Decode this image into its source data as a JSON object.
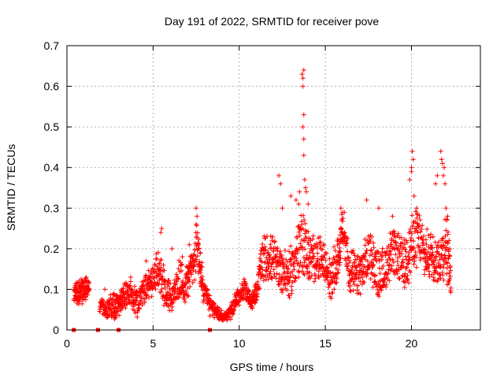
{
  "chart_data": {
    "type": "scatter",
    "title": "Day 191 of 2022, SRMTID for receiver pove",
    "xlabel": "GPS time / hours",
    "ylabel": "SRMTID / TECUs",
    "xlim": [
      0,
      24
    ],
    "ylim": [
      0,
      0.7
    ],
    "xticks": [
      0,
      5,
      10,
      15,
      20
    ],
    "yticks": [
      0,
      0.1,
      0.2,
      0.3,
      0.4,
      0.5,
      0.6,
      0.7
    ],
    "grid": true,
    "marker": "plus",
    "color": "#ff0000",
    "gap_markers_x": [
      0.4,
      1.8,
      3.0,
      8.3
    ],
    "envelope": [
      [
        0.4,
        0.085,
        0.025
      ],
      [
        0.7,
        0.09,
        0.025
      ],
      [
        1.0,
        0.1,
        0.03
      ],
      [
        1.3,
        0.105,
        0.02
      ],
      [
        1.9,
        0.06,
        0.02
      ],
      [
        2.3,
        0.05,
        0.02
      ],
      [
        2.7,
        0.06,
        0.03
      ],
      [
        3.0,
        0.06,
        0.02
      ],
      [
        3.3,
        0.09,
        0.03
      ],
      [
        3.7,
        0.08,
        0.03
      ],
      [
        4.1,
        0.07,
        0.03
      ],
      [
        4.5,
        0.1,
        0.03
      ],
      [
        4.9,
        0.12,
        0.03
      ],
      [
        5.3,
        0.15,
        0.04
      ],
      [
        5.7,
        0.1,
        0.04
      ],
      [
        6.1,
        0.08,
        0.03
      ],
      [
        6.5,
        0.12,
        0.04
      ],
      [
        6.9,
        0.11,
        0.04
      ],
      [
        7.2,
        0.15,
        0.04
      ],
      [
        7.6,
        0.2,
        0.06
      ],
      [
        7.9,
        0.1,
        0.03
      ],
      [
        8.3,
        0.06,
        0.02
      ],
      [
        8.7,
        0.045,
        0.015
      ],
      [
        9.1,
        0.03,
        0.01
      ],
      [
        9.5,
        0.045,
        0.015
      ],
      [
        9.9,
        0.08,
        0.02
      ],
      [
        10.3,
        0.1,
        0.02
      ],
      [
        10.7,
        0.07,
        0.015
      ],
      [
        11.0,
        0.09,
        0.02
      ],
      [
        11.3,
        0.17,
        0.05
      ],
      [
        11.7,
        0.18,
        0.05
      ],
      [
        12.1,
        0.16,
        0.05
      ],
      [
        12.5,
        0.15,
        0.05
      ],
      [
        12.9,
        0.13,
        0.05
      ],
      [
        13.3,
        0.18,
        0.06
      ],
      [
        13.7,
        0.22,
        0.07
      ],
      [
        14.1,
        0.17,
        0.05
      ],
      [
        14.5,
        0.18,
        0.05
      ],
      [
        14.9,
        0.17,
        0.04
      ],
      [
        15.3,
        0.12,
        0.04
      ],
      [
        15.7,
        0.17,
        0.05
      ],
      [
        16.0,
        0.25,
        0.04
      ],
      [
        16.4,
        0.15,
        0.05
      ],
      [
        16.8,
        0.13,
        0.04
      ],
      [
        17.2,
        0.15,
        0.05
      ],
      [
        17.6,
        0.19,
        0.05
      ],
      [
        18.0,
        0.14,
        0.05
      ],
      [
        18.4,
        0.14,
        0.05
      ],
      [
        18.8,
        0.19,
        0.05
      ],
      [
        19.2,
        0.18,
        0.05
      ],
      [
        19.6,
        0.16,
        0.05
      ],
      [
        20.0,
        0.21,
        0.06
      ],
      [
        20.4,
        0.23,
        0.06
      ],
      [
        20.8,
        0.18,
        0.05
      ],
      [
        21.2,
        0.19,
        0.05
      ],
      [
        21.6,
        0.17,
        0.05
      ],
      [
        22.0,
        0.21,
        0.07
      ],
      [
        22.3,
        0.13,
        0.04
      ]
    ],
    "spikes": [
      [
        2.2,
        0.1
      ],
      [
        3.7,
        0.13
      ],
      [
        4.6,
        0.17
      ],
      [
        5.5,
        0.25
      ],
      [
        5.45,
        0.24
      ],
      [
        6.1,
        0.2
      ],
      [
        6.7,
        0.18
      ],
      [
        7.1,
        0.21
      ],
      [
        7.5,
        0.3
      ],
      [
        7.55,
        0.28
      ],
      [
        7.5,
        0.26
      ],
      [
        12.3,
        0.38
      ],
      [
        12.4,
        0.36
      ],
      [
        12.5,
        0.3
      ],
      [
        13.0,
        0.33
      ],
      [
        13.3,
        0.32
      ],
      [
        13.45,
        0.31
      ],
      [
        13.5,
        0.34
      ],
      [
        13.65,
        0.63
      ],
      [
        13.7,
        0.62
      ],
      [
        13.75,
        0.64
      ],
      [
        13.7,
        0.6
      ],
      [
        13.75,
        0.53
      ],
      [
        13.7,
        0.5
      ],
      [
        13.75,
        0.47
      ],
      [
        13.75,
        0.43
      ],
      [
        13.8,
        0.37
      ],
      [
        13.85,
        0.35
      ],
      [
        13.9,
        0.34
      ],
      [
        14.0,
        0.31
      ],
      [
        15.9,
        0.3
      ],
      [
        16.1,
        0.29
      ],
      [
        17.4,
        0.32
      ],
      [
        18.1,
        0.3
      ],
      [
        18.9,
        0.28
      ],
      [
        19.9,
        0.37
      ],
      [
        20.0,
        0.4
      ],
      [
        20.05,
        0.44
      ],
      [
        20.1,
        0.42
      ],
      [
        20.0,
        0.39
      ],
      [
        20.15,
        0.33
      ],
      [
        20.3,
        0.3
      ],
      [
        21.4,
        0.36
      ],
      [
        21.5,
        0.38
      ],
      [
        21.7,
        0.44
      ],
      [
        21.75,
        0.42
      ],
      [
        21.8,
        0.41
      ],
      [
        21.9,
        0.4
      ],
      [
        21.85,
        0.38
      ],
      [
        21.95,
        0.36
      ],
      [
        22.0,
        0.3
      ],
      [
        22.1,
        0.28
      ]
    ]
  }
}
